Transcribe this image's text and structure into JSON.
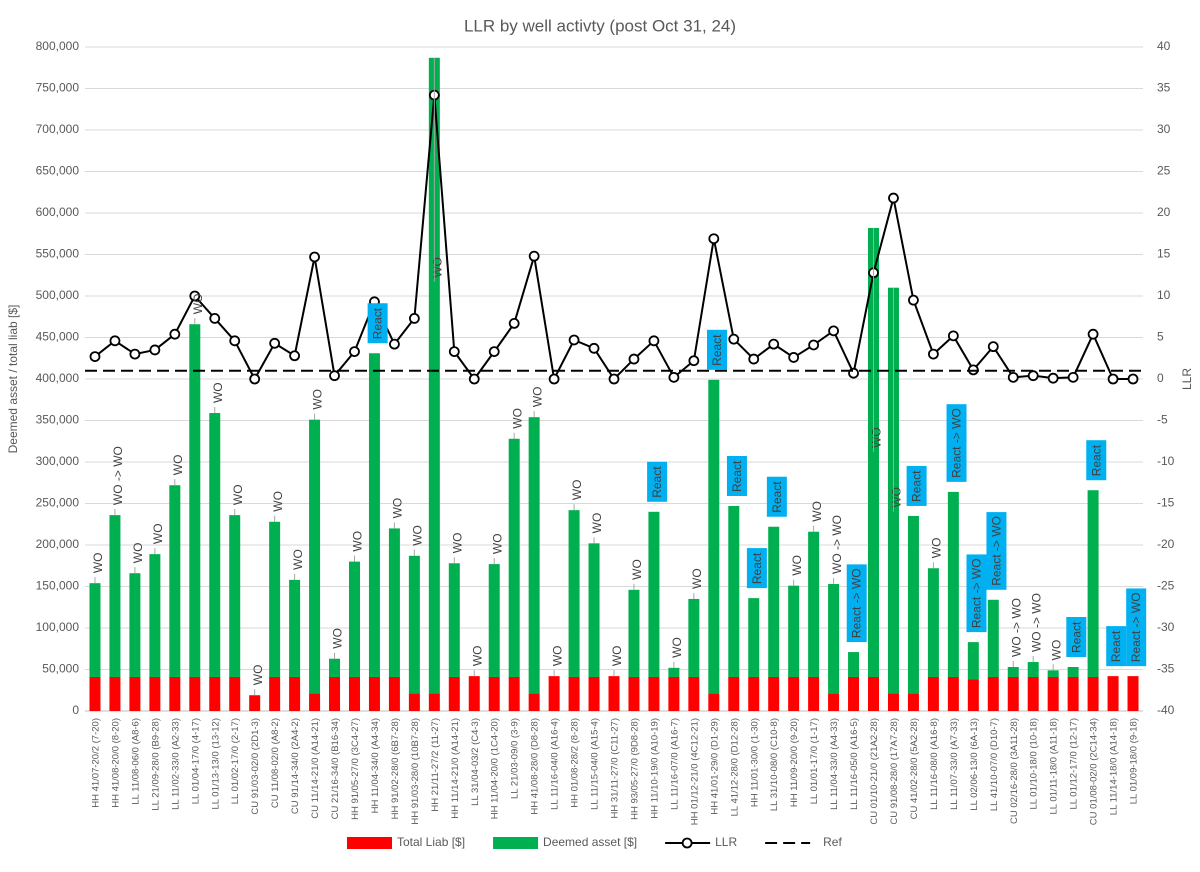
{
  "chart_data": {
    "type": "bar",
    "title": "LLR by well activty (post Oct 31, 24)",
    "y_label": "Deemed asset / total liab [$]",
    "y2_label": "LLR",
    "stacked": true,
    "grid": true,
    "legend": "bottom",
    "categories": [
      "HH 41/07-20/2 (7-20)",
      "HH 41/08-20/0 (8-20)",
      "LL 11/08-06/0 (A8-6)",
      "LL 21/09-28/0 (B9-28)",
      "LL 11/02-33/0 (A2-33)",
      "LL 01/04-17/0 (4-17)",
      "LL 01/13-13/0 (13-12)",
      "LL 01/02-17/0 (2-17)",
      "CU 91/03-02/0 (2D1-3)",
      "CU 11/08-02/0 (A8-2)",
      "CU 91/14-34/0 (2A4-2)",
      "CU 11/14-21/0 (A14-21)",
      "CU 21/16-34/0 (B16-34)",
      "HH 91/05-27/0 (3C4-27)",
      "HH 11/04-34/0 (A4-34)",
      "HH 91/02-28/0 (6B7-28)",
      "HH 91/03-28/0 (10B7-28)",
      "HH 21/11-27/2 (11-27)",
      "HH 11/14-21/0 (A14-21)",
      "LL 31/04-03/2 (C4-3)",
      "HH 11/04-20/0 (1C4-20)",
      "LL 21/03-09/0 (3-9)",
      "HH 41/08-28/0 (D8-28)",
      "LL 11/16-04/0 (A16-4)",
      "HH 01/08-28/2 (8-28)",
      "LL 11/15-04/0 (A15-4)",
      "HH 31/11-27/0 (C11-27)",
      "HH 93/05-27/0 (9D8-28)",
      "HH 11/10-19/0 (A10-19)",
      "LL 11/16-07/0 (A16-7)",
      "HH 01/12-21/0 (4C12-21)",
      "HH 41/01-29/0 (D1-29)",
      "LL 41/12-28/0 (D12-28)",
      "HH 11/01-30/0 (1-30)",
      "LL 31/10-08/0 (C10-8)",
      "HH 11/09-20/0 (9-20)",
      "LL 01/01-17/0 (1-17)",
      "LL 11/04-33/0 (A4-33)",
      "LL 11/16-05/0 (A16-5)",
      "CU 01/10-21/0 (21A2-28)",
      "CU 91/08-28/0 (17A7-28)",
      "CU 41/02-28/0 (5A2-28)",
      "LL 11/16-08/0 (A16-8)",
      "LL 11/07-33/0 (A7-33)",
      "LL 02/06-13/0 (6A-13)",
      "LL 41/10-07/0 (D10-7)",
      "CU 02/16-28/0 (3A11-28)",
      "LL 01/10-18/0 (10-18)",
      "LL 01/11-18/0 (A11-18)",
      "LL 01/12-17/0 (12-17)",
      "CU 01/08-02/0 (2C14-34)",
      "LL 11/14-18/0 (A14-18)",
      "LL 01/09-18/0 (9-18)"
    ],
    "series": [
      {
        "name": "Total Liab [$]",
        "type": "bar",
        "color": "#ff0000",
        "values": [
          41000,
          41000,
          41000,
          41000,
          41000,
          41000,
          41000,
          41000,
          19000,
          41000,
          41000,
          21000,
          41000,
          41000,
          41000,
          41000,
          21000,
          21000,
          41000,
          42000,
          41000,
          41000,
          21000,
          42000,
          41000,
          41000,
          42000,
          41000,
          41000,
          41000,
          41000,
          21000,
          41000,
          41000,
          41000,
          41000,
          41000,
          21000,
          41000,
          41000,
          21000,
          21000,
          41000,
          41000,
          38000,
          41000,
          41000,
          41000,
          41000,
          41000,
          41000,
          42000,
          42000
        ]
      },
      {
        "name": "Deemed asset [$]",
        "type": "bar",
        "color": "#00b050",
        "values": [
          113000,
          195000,
          125000,
          148000,
          231000,
          425000,
          318000,
          195000,
          0,
          187000,
          117000,
          330000,
          22000,
          139000,
          390000,
          179000,
          166000,
          766000,
          137000,
          0,
          136000,
          287000,
          333000,
          0,
          201000,
          161000,
          0,
          105000,
          199000,
          11000,
          94000,
          378000,
          206000,
          95000,
          181000,
          110000,
          175000,
          132000,
          30000,
          541000,
          489000,
          214000,
          131000,
          223000,
          45000,
          93000,
          12000,
          18000,
          8000,
          12000,
          225000,
          0,
          0
        ]
      },
      {
        "name": "LLR",
        "type": "line",
        "axis": "y2",
        "color": "#000000",
        "values": [
          2.7,
          4.6,
          3.0,
          3.5,
          5.4,
          10,
          7.3,
          4.6,
          0,
          4.3,
          2.8,
          14.7,
          0.4,
          3.3,
          9.3,
          4.2,
          7.3,
          34.2,
          3.3,
          0,
          3.3,
          6.7,
          14.8,
          0,
          4.7,
          3.7,
          0,
          2.4,
          4.6,
          0.2,
          2.2,
          16.9,
          4.8,
          2.4,
          4.2,
          2.6,
          4.1,
          5.8,
          0.7,
          12.8,
          21.8,
          9.5,
          3.0,
          5.2,
          1.1,
          3.9,
          0.2,
          0.4,
          0.1,
          0.2,
          5.4,
          0,
          0
        ]
      }
    ],
    "reference_line": {
      "name": "Ref",
      "value": 1,
      "axis": "y2",
      "color": "#000000"
    },
    "annotations": [
      {
        "text": "WO"
      },
      {
        "text": "WO -> WO"
      },
      {
        "text": "WO"
      },
      {
        "text": "WO"
      },
      {
        "text": "WO"
      },
      {
        "text": "WO"
      },
      {
        "text": "WO"
      },
      {
        "text": "WO"
      },
      {
        "text": "WO"
      },
      {
        "text": "WO"
      },
      {
        "text": "WO"
      },
      {
        "text": "WO"
      },
      {
        "text": "WO"
      },
      {
        "text": "WO"
      },
      {
        "text": "React",
        "boxed": true
      },
      {
        "text": "WO"
      },
      {
        "text": "WO"
      },
      {
        "text": "WO"
      },
      {
        "text": "WO"
      },
      {
        "text": "WO"
      },
      {
        "text": "WO"
      },
      {
        "text": "WO"
      },
      {
        "text": "WO"
      },
      {
        "text": "WO"
      },
      {
        "text": "WO"
      },
      {
        "text": "WO"
      },
      {
        "text": "WO"
      },
      {
        "text": "WO"
      },
      {
        "text": "React",
        "boxed": true
      },
      {
        "text": "WO"
      },
      {
        "text": "WO"
      },
      {
        "text": "React",
        "boxed": true
      },
      {
        "text": "React",
        "boxed": true
      },
      {
        "text": "React",
        "boxed": true
      },
      {
        "text": "React",
        "boxed": true
      },
      {
        "text": "WO"
      },
      {
        "text": "WO"
      },
      {
        "text": "WO -> WO"
      },
      {
        "text": "React -> WO",
        "boxed": true
      },
      {
        "text": "WO"
      },
      {
        "text": "WO"
      },
      {
        "text": "React",
        "boxed": true
      },
      {
        "text": "WO"
      },
      {
        "text": "React -> WO",
        "boxed": true
      },
      {
        "text": "React -> WO",
        "boxed": true
      },
      {
        "text": "React -> WO",
        "boxed": true
      },
      {
        "text": "WO -> WO"
      },
      {
        "text": "WO -> WO"
      },
      {
        "text": "WO"
      },
      {
        "text": "React",
        "boxed": true
      },
      {
        "text": "React",
        "boxed": true
      },
      {
        "text": "React",
        "boxed": true
      },
      {
        "text": "React -> WO",
        "boxed": true
      }
    ],
    "box_color": "#00b0f0",
    "ylim": [
      0,
      800000
    ],
    "yticks": [
      0,
      {
        "value": 50000,
        "label": "50,000"
      },
      {
        "value": 100000,
        "label": "100,000"
      },
      {
        "value": 150000,
        "label": "150,000"
      },
      {
        "value": 200000,
        "label": "200,000"
      },
      {
        "value": 250000,
        "label": "250,000"
      },
      {
        "value": 300000,
        "label": "300,000"
      },
      {
        "value": 350000,
        "label": "350,000"
      },
      {
        "value": 400000,
        "label": "400,000"
      },
      {
        "value": 450000,
        "label": "450,000"
      },
      {
        "value": 500000,
        "label": "500,000"
      },
      {
        "value": 550000,
        "label": "550,000"
      },
      {
        "value": 600000,
        "label": "600,000"
      },
      {
        "value": 650000,
        "label": "650,000"
      },
      {
        "value": 700000,
        "label": "700,000"
      },
      {
        "value": 750000,
        "label": "750,000"
      },
      {
        "value": 800000,
        "label": "800,000"
      }
    ],
    "y2lim": [
      -40,
      40
    ],
    "y2ticks": [
      -40,
      -35,
      -30,
      -25,
      -20,
      -15,
      -10,
      -5,
      0,
      5,
      10,
      15,
      20,
      25,
      30,
      35,
      40
    ]
  }
}
